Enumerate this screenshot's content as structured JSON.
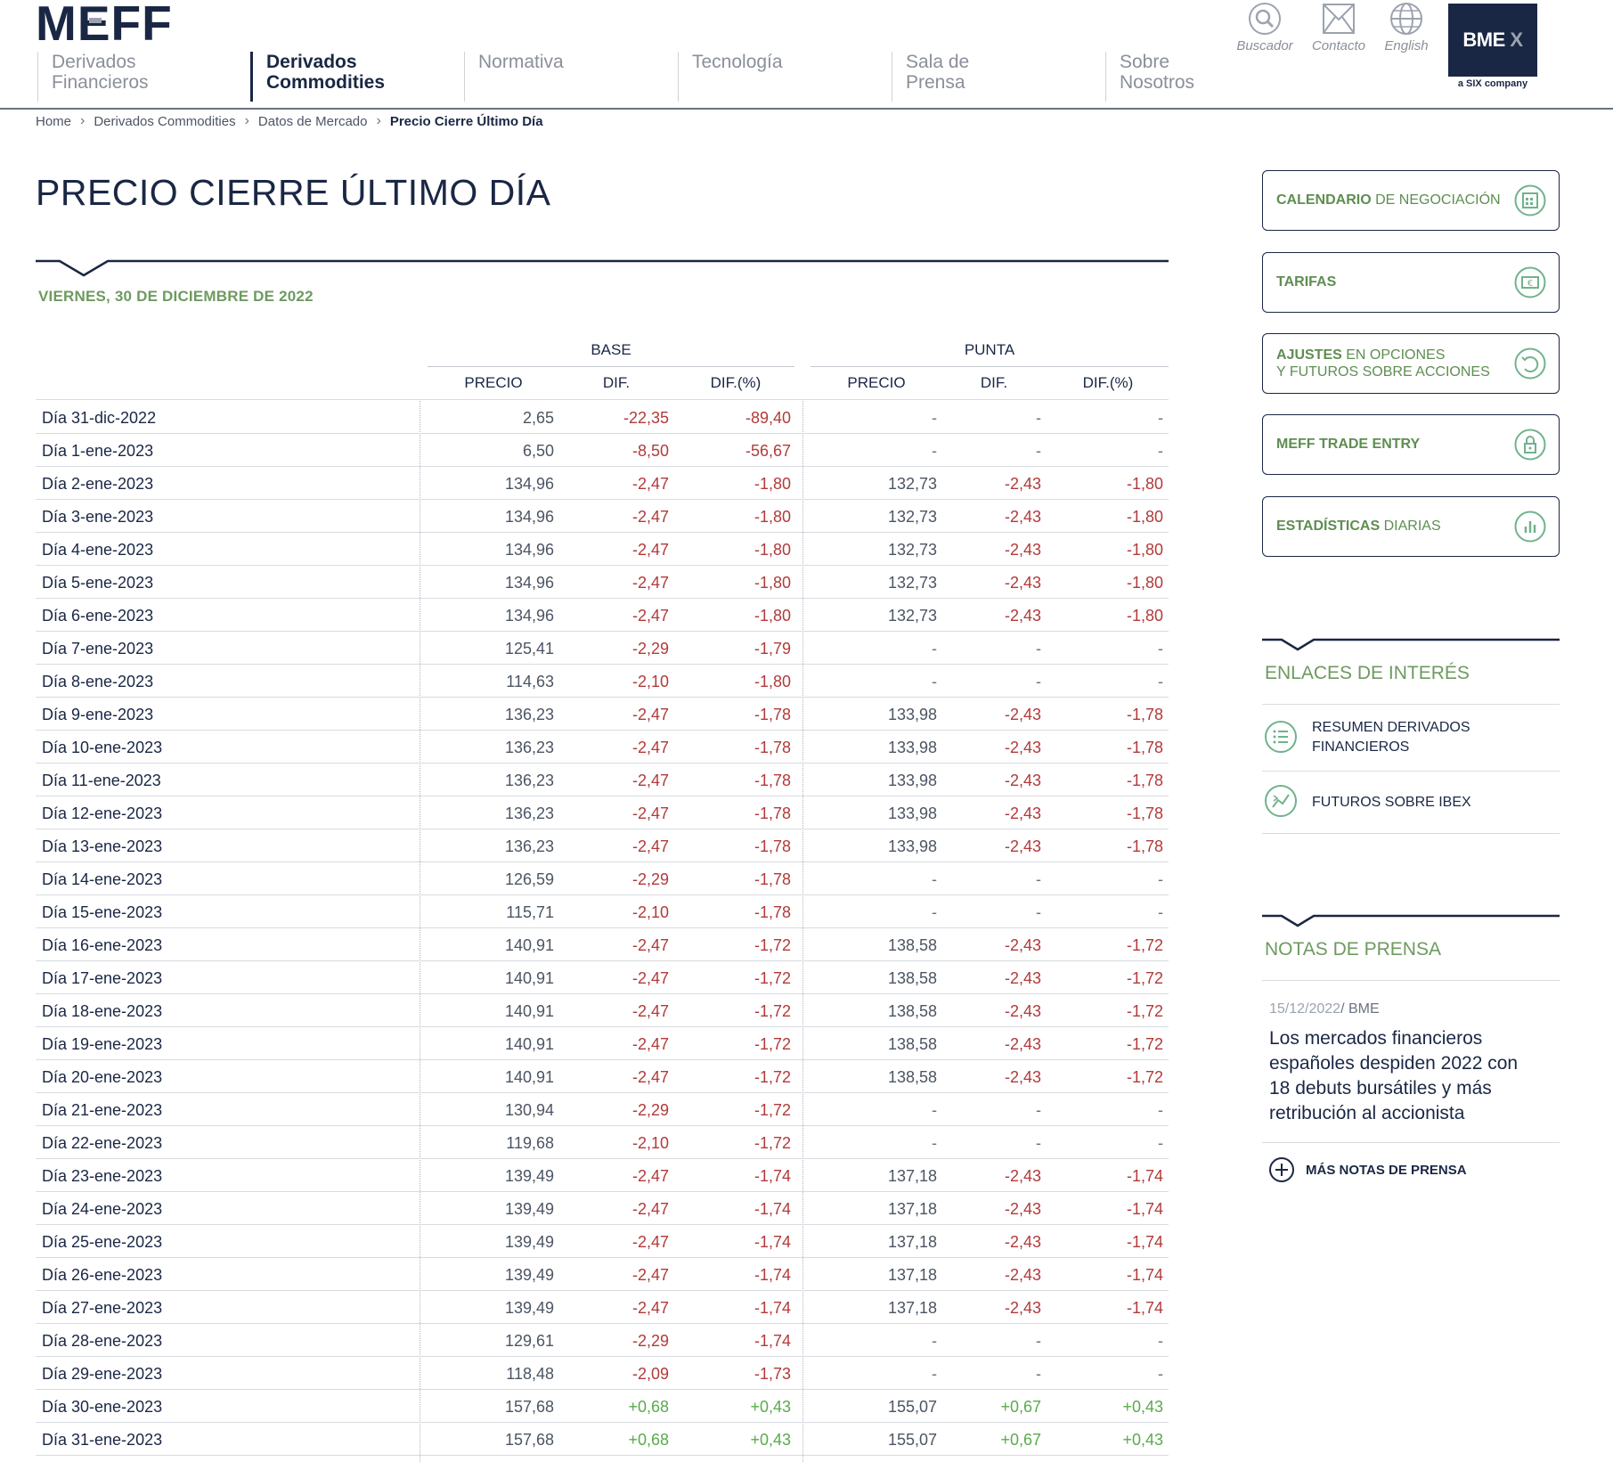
{
  "header": {
    "logo_text": "MEFF",
    "nav": [
      {
        "line1": "Derivados",
        "line2": "Financieros"
      },
      {
        "line1": "Derivados",
        "line2": "Commodities"
      },
      {
        "line1": "Normativa",
        "line2": ""
      },
      {
        "line1": "Tecnología",
        "line2": ""
      },
      {
        "line1": "Sala de",
        "line2": "Prensa"
      },
      {
        "line1": "Sobre",
        "line2": "Nosotros"
      }
    ],
    "utils": {
      "search": "Buscador",
      "contact": "Contacto",
      "language": "English"
    },
    "bme_logo": "BME",
    "bme_sub": "a SIX company"
  },
  "breadcrumb": [
    "Home",
    "Derivados Commodities",
    "Datos de Mercado",
    "Precio Cierre Último Día"
  ],
  "page_title": "PRECIO CIERRE ÚLTIMO DÍA",
  "date_label": "VIERNES, 30 DE DICIEMBRE DE 2022",
  "table": {
    "group_headers": [
      "BASE",
      "PUNTA"
    ],
    "columns": [
      "PRECIO",
      "DIF.",
      "DIF.(%)",
      "PRECIO",
      "DIF.",
      "DIF.(%)"
    ],
    "rows": [
      [
        "Día 31-dic-2022",
        "2,65",
        "-22,35",
        "-89,40",
        "-",
        "-",
        "-"
      ],
      [
        "Día 1-ene-2023",
        "6,50",
        "-8,50",
        "-56,67",
        "-",
        "-",
        "-"
      ],
      [
        "Día 2-ene-2023",
        "134,96",
        "-2,47",
        "-1,80",
        "132,73",
        "-2,43",
        "-1,80"
      ],
      [
        "Día 3-ene-2023",
        "134,96",
        "-2,47",
        "-1,80",
        "132,73",
        "-2,43",
        "-1,80"
      ],
      [
        "Día 4-ene-2023",
        "134,96",
        "-2,47",
        "-1,80",
        "132,73",
        "-2,43",
        "-1,80"
      ],
      [
        "Día 5-ene-2023",
        "134,96",
        "-2,47",
        "-1,80",
        "132,73",
        "-2,43",
        "-1,80"
      ],
      [
        "Día 6-ene-2023",
        "134,96",
        "-2,47",
        "-1,80",
        "132,73",
        "-2,43",
        "-1,80"
      ],
      [
        "Día 7-ene-2023",
        "125,41",
        "-2,29",
        "-1,79",
        "-",
        "-",
        "-"
      ],
      [
        "Día 8-ene-2023",
        "114,63",
        "-2,10",
        "-1,80",
        "-",
        "-",
        "-"
      ],
      [
        "Día 9-ene-2023",
        "136,23",
        "-2,47",
        "-1,78",
        "133,98",
        "-2,43",
        "-1,78"
      ],
      [
        "Día 10-ene-2023",
        "136,23",
        "-2,47",
        "-1,78",
        "133,98",
        "-2,43",
        "-1,78"
      ],
      [
        "Día 11-ene-2023",
        "136,23",
        "-2,47",
        "-1,78",
        "133,98",
        "-2,43",
        "-1,78"
      ],
      [
        "Día 12-ene-2023",
        "136,23",
        "-2,47",
        "-1,78",
        "133,98",
        "-2,43",
        "-1,78"
      ],
      [
        "Día 13-ene-2023",
        "136,23",
        "-2,47",
        "-1,78",
        "133,98",
        "-2,43",
        "-1,78"
      ],
      [
        "Día 14-ene-2023",
        "126,59",
        "-2,29",
        "-1,78",
        "-",
        "-",
        "-"
      ],
      [
        "Día 15-ene-2023",
        "115,71",
        "-2,10",
        "-1,78",
        "-",
        "-",
        "-"
      ],
      [
        "Día 16-ene-2023",
        "140,91",
        "-2,47",
        "-1,72",
        "138,58",
        "-2,43",
        "-1,72"
      ],
      [
        "Día 17-ene-2023",
        "140,91",
        "-2,47",
        "-1,72",
        "138,58",
        "-2,43",
        "-1,72"
      ],
      [
        "Día 18-ene-2023",
        "140,91",
        "-2,47",
        "-1,72",
        "138,58",
        "-2,43",
        "-1,72"
      ],
      [
        "Día 19-ene-2023",
        "140,91",
        "-2,47",
        "-1,72",
        "138,58",
        "-2,43",
        "-1,72"
      ],
      [
        "Día 20-ene-2023",
        "140,91",
        "-2,47",
        "-1,72",
        "138,58",
        "-2,43",
        "-1,72"
      ],
      [
        "Día 21-ene-2023",
        "130,94",
        "-2,29",
        "-1,72",
        "-",
        "-",
        "-"
      ],
      [
        "Día 22-ene-2023",
        "119,68",
        "-2,10",
        "-1,72",
        "-",
        "-",
        "-"
      ],
      [
        "Día 23-ene-2023",
        "139,49",
        "-2,47",
        "-1,74",
        "137,18",
        "-2,43",
        "-1,74"
      ],
      [
        "Día 24-ene-2023",
        "139,49",
        "-2,47",
        "-1,74",
        "137,18",
        "-2,43",
        "-1,74"
      ],
      [
        "Día 25-ene-2023",
        "139,49",
        "-2,47",
        "-1,74",
        "137,18",
        "-2,43",
        "-1,74"
      ],
      [
        "Día 26-ene-2023",
        "139,49",
        "-2,47",
        "-1,74",
        "137,18",
        "-2,43",
        "-1,74"
      ],
      [
        "Día 27-ene-2023",
        "139,49",
        "-2,47",
        "-1,74",
        "137,18",
        "-2,43",
        "-1,74"
      ],
      [
        "Día 28-ene-2023",
        "129,61",
        "-2,29",
        "-1,74",
        "-",
        "-",
        "-"
      ],
      [
        "Día 29-ene-2023",
        "118,48",
        "-2,09",
        "-1,73",
        "-",
        "-",
        "-"
      ],
      [
        "Día 30-ene-2023",
        "157,68",
        "+0,68",
        "+0,43",
        "155,07",
        "+0,67",
        "+0,43"
      ],
      [
        "Día 31-ene-2023",
        "157,68",
        "+0,68",
        "+0,43",
        "155,07",
        "+0,67",
        "+0,43"
      ]
    ]
  },
  "sidebar": {
    "buttons": [
      {
        "bold": "CALENDARIO",
        "rest": " DE NEGOCIACIÓN",
        "line2": "",
        "icon": "calendar-icon"
      },
      {
        "bold": "TARIFAS",
        "rest": "",
        "line2": "",
        "icon": "euro-icon"
      },
      {
        "bold": "AJUSTES",
        "rest": " EN OPCIONES",
        "line2": "Y FUTUROS SOBRE ACCIONES",
        "icon": "refresh-icon"
      },
      {
        "bold": "MEFF TRADE ENTRY",
        "rest": "",
        "line2": "",
        "icon": "lock-icon"
      },
      {
        "bold": "ESTADÍSTICAS",
        "rest": " DIARIAS",
        "line2": "",
        "icon": "bar-chart-icon"
      }
    ],
    "links_title": "ENLACES DE INTERÉS",
    "links": [
      {
        "line1": "RESUMEN DERIVADOS",
        "line2": "FINANCIEROS",
        "icon": "list-icon"
      },
      {
        "line1": "FUTUROS SOBRE IBEX",
        "line2": "",
        "icon": "trend-icon"
      }
    ],
    "press_title": "NOTAS DE PRENSA",
    "press_date": "15/12/2022",
    "press_source": "/ BME",
    "press_headline": [
      "Los mercados financieros",
      "españoles despiden 2022 con",
      "18 debuts bursátiles y más",
      "retribución al accionista"
    ],
    "more_press": "MÁS NOTAS DE PRENSA"
  }
}
